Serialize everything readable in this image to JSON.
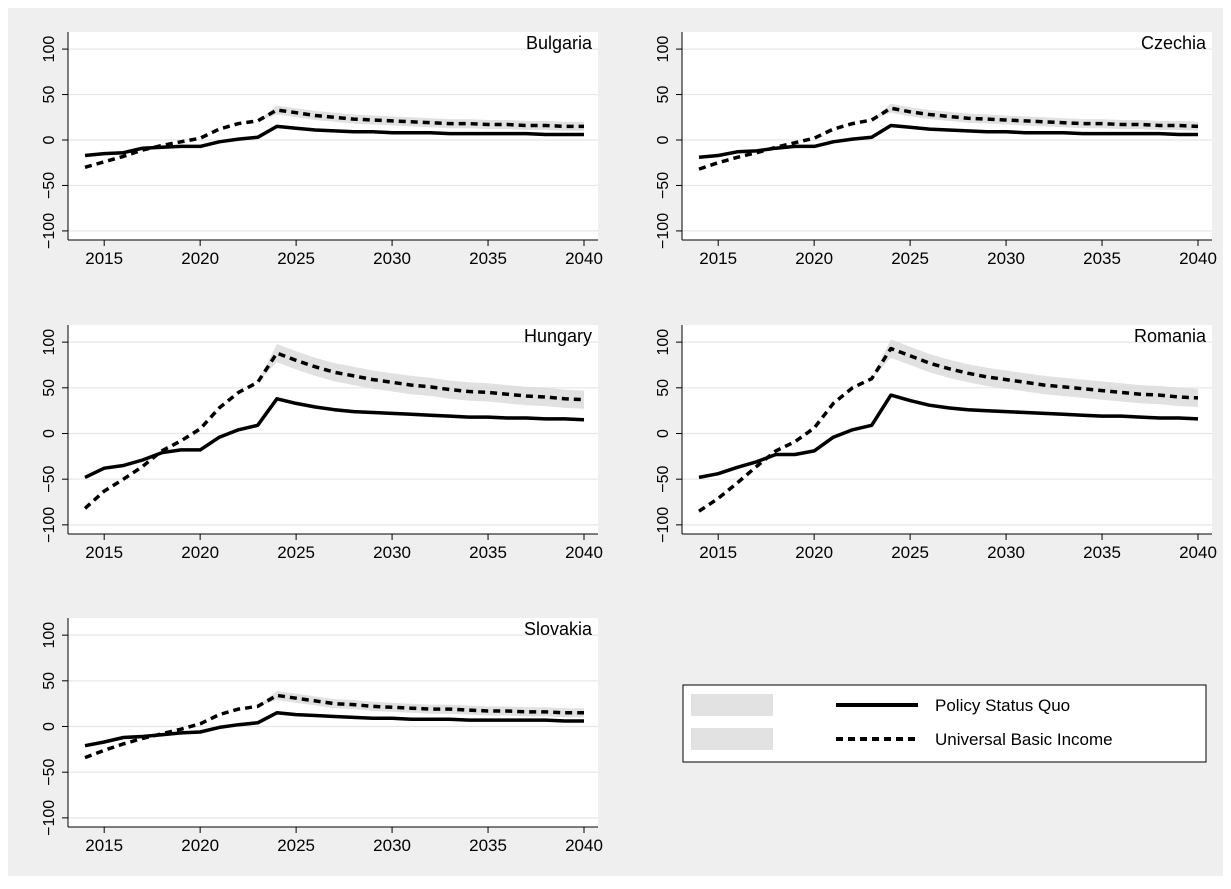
{
  "chart_data": {
    "type": "line",
    "x_ticks": [
      2015,
      2020,
      2025,
      2030,
      2035,
      2040
    ],
    "y_ticks": [
      -100,
      -50,
      0,
      50,
      100
    ],
    "ylim": [
      -110,
      110
    ],
    "xlim": [
      2013.8,
      2040.2
    ],
    "grid": true,
    "legend_position": "bottom-right",
    "legend": {
      "entries": [
        "Policy Status Quo",
        "Universal Basic Income"
      ],
      "styles": [
        "solid",
        "dashed"
      ]
    },
    "colors": {
      "background": "#efefef",
      "plot": "#ffffff",
      "band": "#d9d9d9",
      "line": "#000000",
      "grid": "#e5e5e5"
    },
    "x": [
      2014,
      2015,
      2016,
      2017,
      2018,
      2019,
      2020,
      2021,
      2022,
      2023,
      2024,
      2025,
      2026,
      2027,
      2028,
      2029,
      2030,
      2031,
      2032,
      2033,
      2034,
      2035,
      2036,
      2037,
      2038,
      2039,
      2040
    ],
    "panels": [
      {
        "title": "Bulgaria",
        "series": [
          {
            "name": "Policy Status Quo",
            "values": [
              -17,
              -15,
              -14,
              -9,
              -8,
              -7,
              -7,
              -2,
              1,
              3,
              15,
              13,
              11,
              10,
              9,
              9,
              8,
              8,
              8,
              7,
              7,
              7,
              7,
              7,
              6,
              6,
              6
            ],
            "band": 1
          },
          {
            "name": "Universal Basic Income",
            "values": [
              -30,
              -24,
              -18,
              -11,
              -6,
              -2,
              2,
              12,
              18,
              21,
              33,
              30,
              27,
              25,
              23,
              22,
              21,
              20,
              19,
              18,
              18,
              17,
              17,
              16,
              16,
              15,
              15
            ],
            "band": 5
          }
        ]
      },
      {
        "title": "Czechia",
        "series": [
          {
            "name": "Policy Status Quo",
            "values": [
              -19,
              -17,
              -13,
              -12,
              -9,
              -7,
              -7,
              -2,
              1,
              3,
              16,
              14,
              12,
              11,
              10,
              9,
              9,
              8,
              8,
              8,
              7,
              7,
              7,
              7,
              7,
              6,
              6
            ],
            "band": 1
          },
          {
            "name": "Universal Basic Income",
            "values": [
              -32,
              -25,
              -19,
              -14,
              -8,
              -3,
              2,
              12,
              18,
              22,
              35,
              31,
              28,
              26,
              24,
              23,
              22,
              21,
              20,
              19,
              18,
              18,
              17,
              17,
              16,
              16,
              15
            ],
            "band": 5
          }
        ]
      },
      {
        "title": "Hungary",
        "series": [
          {
            "name": "Policy Status Quo",
            "values": [
              -48,
              -38,
              -35,
              -29,
              -21,
              -18,
              -18,
              -4,
              4,
              9,
              38,
              33,
              29,
              26,
              24,
              23,
              22,
              21,
              20,
              19,
              18,
              18,
              17,
              17,
              16,
              16,
              15
            ],
            "band": 2
          },
          {
            "name": "Universal Basic Income",
            "values": [
              -82,
              -63,
              -50,
              -36,
              -19,
              -8,
              5,
              28,
              45,
              56,
              88,
              80,
              73,
              67,
              63,
              59,
              56,
              53,
              51,
              48,
              46,
              45,
              43,
              41,
              40,
              38,
              37
            ],
            "band": 10
          }
        ]
      },
      {
        "title": "Romania",
        "series": [
          {
            "name": "Policy Status Quo",
            "values": [
              -48,
              -44,
              -37,
              -31,
              -23,
              -23,
              -19,
              -4,
              4,
              9,
              42,
              36,
              31,
              28,
              26,
              25,
              24,
              23,
              22,
              21,
              20,
              19,
              19,
              18,
              17,
              17,
              16
            ],
            "band": 2
          },
          {
            "name": "Universal Basic Income",
            "values": [
              -85,
              -71,
              -54,
              -36,
              -19,
              -9,
              6,
              33,
              50,
              60,
              93,
              85,
              77,
              71,
              66,
              62,
              59,
              56,
              53,
              51,
              49,
              47,
              45,
              43,
              42,
              40,
              39
            ],
            "band": 10
          }
        ]
      },
      {
        "title": "Slovakia",
        "series": [
          {
            "name": "Policy Status Quo",
            "values": [
              -21,
              -17,
              -12,
              -11,
              -9,
              -7,
              -6,
              -1,
              2,
              4,
              15,
              13,
              12,
              11,
              10,
              9,
              9,
              8,
              8,
              8,
              7,
              7,
              7,
              7,
              7,
              6,
              6
            ],
            "band": 1
          },
          {
            "name": "Universal Basic Income",
            "values": [
              -34,
              -26,
              -19,
              -13,
              -8,
              -3,
              3,
              13,
              19,
              22,
              34,
              31,
              28,
              25,
              24,
              22,
              21,
              20,
              19,
              19,
              18,
              17,
              17,
              16,
              16,
              15,
              15
            ],
            "band": 5
          }
        ]
      }
    ]
  }
}
